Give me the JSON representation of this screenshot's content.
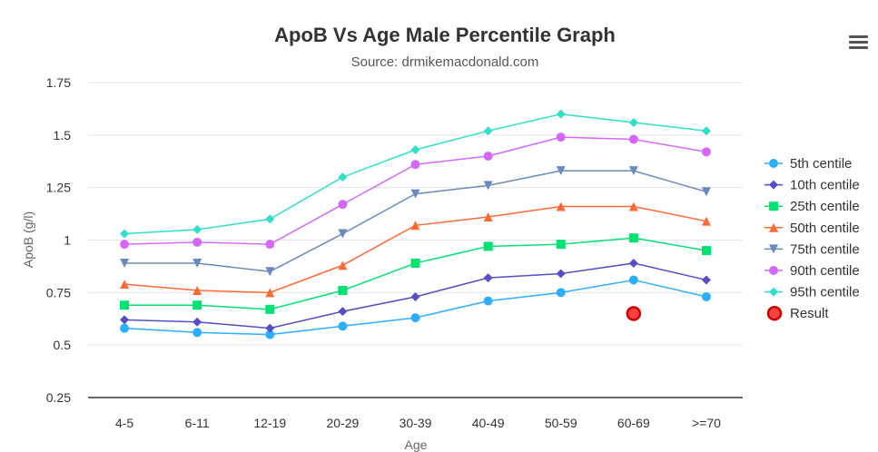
{
  "chart_data": {
    "type": "line",
    "title": "ApoB Vs Age Male Percentile Graph",
    "subtitle": "Source: drmikemacdonald.com",
    "xlabel": "Age",
    "ylabel": "ApoB (g/l)",
    "categories": [
      "4-5",
      "6-11",
      "12-19",
      "20-29",
      "30-39",
      "40-49",
      "50-59",
      "60-69",
      ">=70"
    ],
    "ylim": [
      0.25,
      1.75
    ],
    "yticks": [
      "0.25",
      "0.5",
      "0.75",
      "1",
      "1.25",
      "1.5",
      "1.75"
    ],
    "legend_position": "right",
    "grid": true,
    "series": [
      {
        "name": "5th centile",
        "color": "#2caffe",
        "marker": "circle",
        "values": [
          0.58,
          0.56,
          0.55,
          0.59,
          0.63,
          0.71,
          0.75,
          0.81,
          0.73
        ]
      },
      {
        "name": "10th centile",
        "color": "#544fc5",
        "marker": "diamond",
        "values": [
          0.62,
          0.61,
          0.58,
          0.66,
          0.73,
          0.82,
          0.84,
          0.89,
          0.81
        ]
      },
      {
        "name": "25th centile",
        "color": "#00e272",
        "marker": "square",
        "values": [
          0.69,
          0.69,
          0.67,
          0.76,
          0.89,
          0.97,
          0.98,
          1.01,
          0.95
        ]
      },
      {
        "name": "50th centile",
        "color": "#fe6a35",
        "marker": "triangle",
        "values": [
          0.79,
          0.76,
          0.75,
          0.88,
          1.07,
          1.11,
          1.16,
          1.16,
          1.09
        ]
      },
      {
        "name": "75th centile",
        "color": "#6b8abc",
        "marker": "triangle-down",
        "values": [
          0.89,
          0.89,
          0.85,
          1.03,
          1.22,
          1.26,
          1.33,
          1.33,
          1.23
        ]
      },
      {
        "name": "90th centile",
        "color": "#d568fb",
        "marker": "circle",
        "values": [
          0.98,
          0.99,
          0.98,
          1.17,
          1.36,
          1.4,
          1.49,
          1.48,
          1.42
        ]
      },
      {
        "name": "95th centile",
        "color": "#2ee0ca",
        "marker": "diamond",
        "values": [
          1.03,
          1.05,
          1.1,
          1.3,
          1.43,
          1.52,
          1.6,
          1.56,
          1.52
        ]
      }
    ],
    "result": {
      "name": "Result",
      "category": "60-69",
      "value": 0.65,
      "color": "#ff0000"
    }
  },
  "icons": {
    "menu": "hamburger-menu-icon"
  }
}
